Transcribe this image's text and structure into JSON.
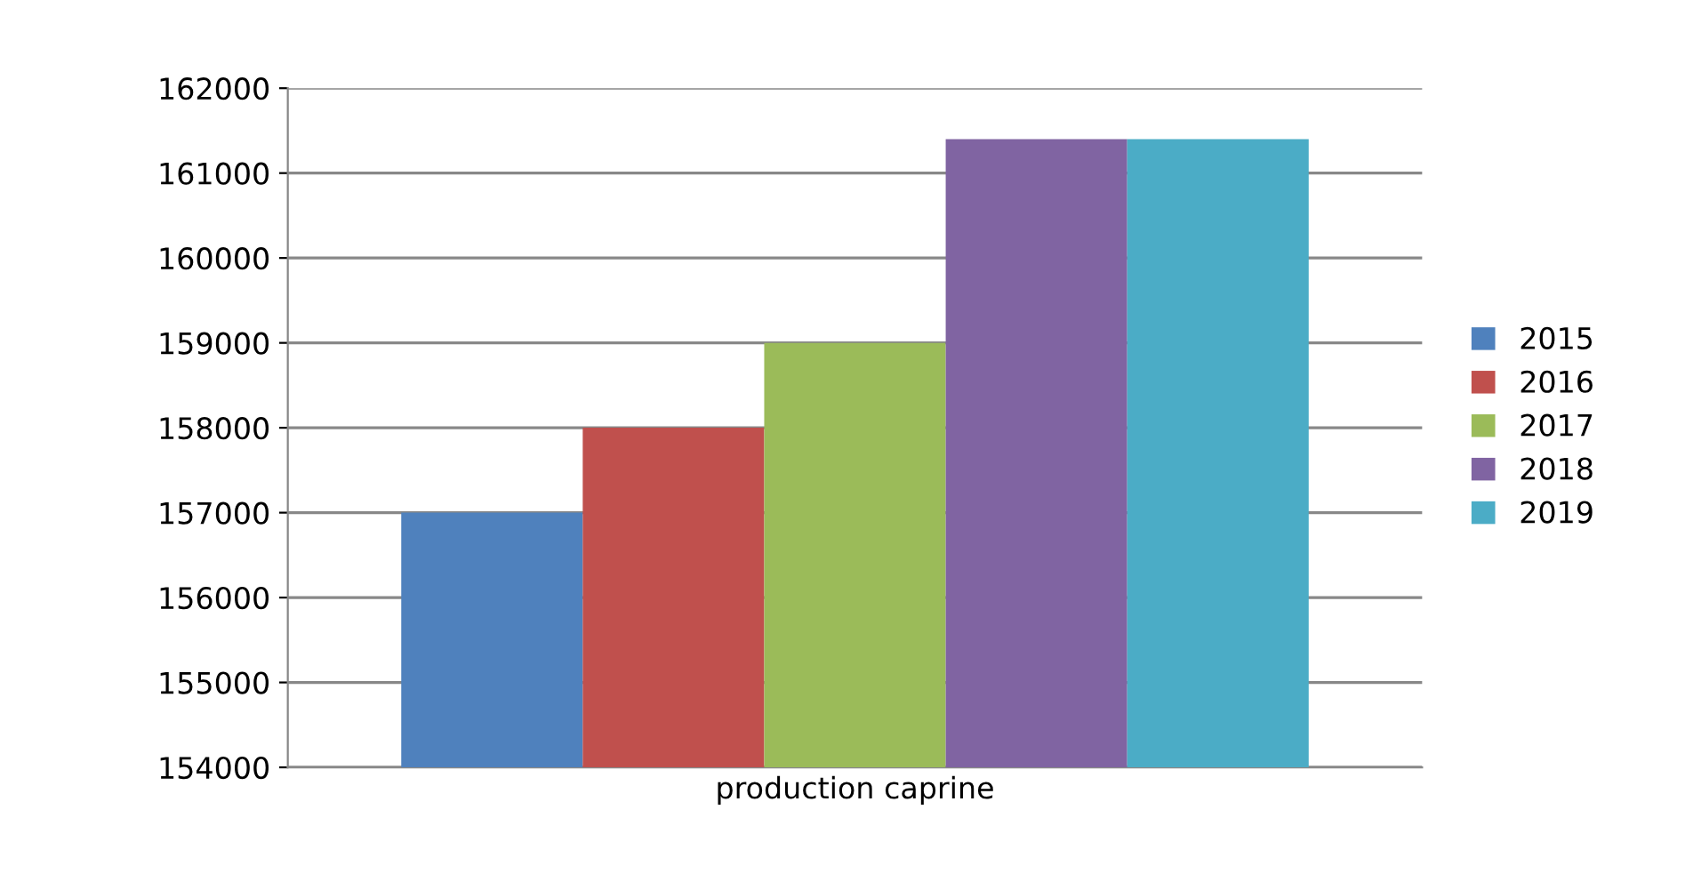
{
  "chart_data": {
    "type": "bar",
    "categories": [
      "production caprine"
    ],
    "series": [
      {
        "name": "2015",
        "color": "#4f81bd",
        "values": [
          157000
        ]
      },
      {
        "name": "2016",
        "color": "#c0504d",
        "values": [
          158000
        ]
      },
      {
        "name": "2017",
        "color": "#9bbb59",
        "values": [
          159000
        ]
      },
      {
        "name": "2018",
        "color": "#8064a2",
        "values": [
          161400
        ]
      },
      {
        "name": "2019",
        "color": "#4bacc6",
        "values": [
          161400
        ]
      }
    ],
    "ylim": [
      154000,
      162000
    ],
    "yticks": [
      154000,
      155000,
      156000,
      157000,
      158000,
      159000,
      160000,
      161000,
      162000
    ],
    "grid": "y",
    "legend": "right"
  }
}
